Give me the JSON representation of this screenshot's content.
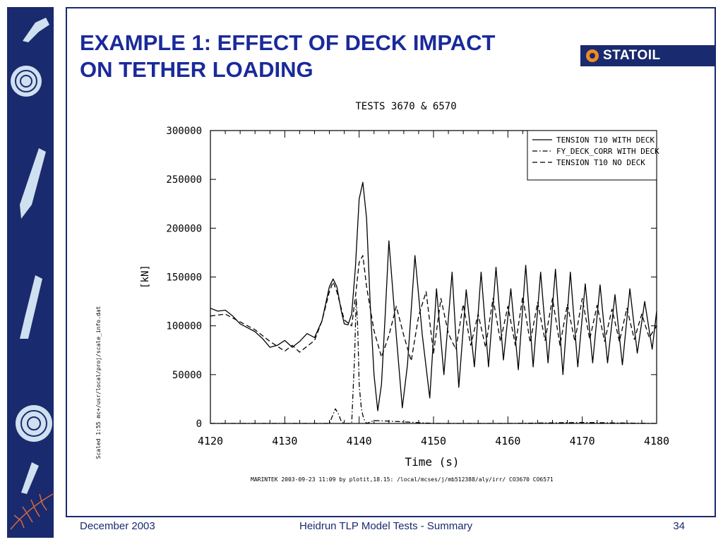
{
  "slide": {
    "title_line1": "EXAMPLE 1: EFFECT OF DECK IMPACT",
    "title_line2": "ON TETHER LOADING",
    "logo_text": "STATOIL",
    "logo_icon": "statoil-flame-icon",
    "footer_left": "December 2003",
    "footer_center": "Heidrun TLP Model Tests - Summary",
    "footer_right": "34",
    "colors": {
      "brand_navy": "#1a2a6e",
      "title_blue": "#1a2a9a",
      "logo_orange": "#f08a24"
    }
  },
  "chart_data": {
    "type": "line",
    "title": "TESTS 3670 & 6570",
    "xlabel": "Time (s)",
    "ylabel": "[kN]",
    "xlim": [
      4120,
      4180
    ],
    "ylim": [
      0,
      300000
    ],
    "x_ticks": [
      4120,
      4130,
      4140,
      4150,
      4160,
      4170,
      4180
    ],
    "y_ticks": [
      0,
      50000,
      100000,
      150000,
      200000,
      250000,
      300000
    ],
    "grid": false,
    "legend_position": "top-right",
    "side_note": "Scaled 1:55 mc+/usr/local/proj/scale_info.dat",
    "footer_note": "MARINTEK 2003-09-23 11:09 by plotit,18.15: /local/mcses/j/mb512388/aly/irr/ CO3670 CO6571",
    "series": [
      {
        "name": "TENSION T10 WITH DECK",
        "style": "solid",
        "x": [
          4120,
          4121,
          4122,
          4123,
          4124,
          4125,
          4126,
          4127,
          4128,
          4129,
          4130,
          4131,
          4132,
          4133,
          4134,
          4135,
          4136,
          4136.5,
          4137,
          4137.6,
          4138,
          4138.5,
          4139,
          4139.5,
          4140,
          4140.5,
          4141,
          4141.5,
          4142,
          4142.5,
          4143,
          4143.5,
          4144,
          4145,
          4145.8,
          4146.5,
          4147.5,
          4148.5,
          4149.5,
          4150.4,
          4151.4,
          4152.5,
          4153.4,
          4154.4,
          4155.5,
          4156.4,
          4157.4,
          4158.4,
          4159.4,
          4160.4,
          4161.4,
          4162.4,
          4163.4,
          4164.4,
          4165.4,
          4166.4,
          4167.4,
          4168.4,
          4169.4,
          4170.4,
          4171.4,
          4172.4,
          4173.4,
          4174.4,
          4175.4,
          4176.4,
          4177.4,
          4178.4,
          4179.4,
          4180
        ],
        "y": [
          118000,
          115000,
          116000,
          110000,
          102000,
          98000,
          94000,
          87000,
          78000,
          80000,
          85000,
          78000,
          84000,
          92000,
          88000,
          105000,
          140000,
          148000,
          140000,
          115000,
          102000,
          101000,
          112000,
          160000,
          230000,
          247000,
          210000,
          120000,
          50000,
          13000,
          40000,
          110000,
          187000,
          90000,
          16000,
          60000,
          172000,
          90000,
          26000,
          138000,
          50000,
          155000,
          37000,
          137000,
          58000,
          155000,
          58000,
          160000,
          65000,
          138000,
          55000,
          162000,
          58000,
          155000,
          62000,
          158000,
          50000,
          155000,
          58000,
          143000,
          62000,
          142000,
          62000,
          132000,
          60000,
          138000,
          72000,
          125000,
          76000,
          115000
        ]
      },
      {
        "name": "FY_DECK_CORR WITH DECK",
        "style": "dashdot",
        "x": [
          4120,
          4136,
          4136.8,
          4137.2,
          4137.6,
          4138,
          4139,
          4139.4,
          4139.6,
          4139.8,
          4140,
          4140.3,
          4140.6,
          4141,
          4142,
          4145,
          4150,
          4160,
          4170,
          4180
        ],
        "y": [
          0,
          0,
          15000,
          10000,
          2000,
          0,
          0,
          70000,
          128000,
          100000,
          40000,
          15000,
          5000,
          0,
          3000,
          2000,
          0,
          0,
          1000,
          0
        ]
      },
      {
        "name": "TENSION T10 NO DECK",
        "style": "dashed",
        "x": [
          4120,
          4122,
          4124,
          4126,
          4128,
          4130,
          4131,
          4132,
          4134,
          4135,
          4136,
          4136.5,
          4137,
          4138,
          4139,
          4139.5,
          4140,
          4140.5,
          4141,
          4142,
          4143,
          4144,
          4145,
          4146,
          4147,
          4148,
          4149,
          4150,
          4151,
          4152,
          4153,
          4154,
          4155,
          4156,
          4157,
          4158,
          4159,
          4160,
          4161,
          4162,
          4163,
          4164,
          4165,
          4166,
          4167,
          4168,
          4169,
          4170,
          4171,
          4172,
          4173,
          4174,
          4175,
          4176,
          4177,
          4178,
          4179,
          4180
        ],
        "y": [
          110000,
          112000,
          104000,
          96000,
          84000,
          74000,
          80000,
          73000,
          85000,
          105000,
          135000,
          145000,
          135000,
          106000,
          100000,
          130000,
          165000,
          172000,
          140000,
          95000,
          68000,
          90000,
          120000,
          90000,
          64000,
          110000,
          135000,
          72000,
          128000,
          92000,
          76000,
          122000,
          80000,
          112000,
          78000,
          128000,
          84000,
          120000,
          80000,
          130000,
          83000,
          124000,
          85000,
          128000,
          80000,
          122000,
          84000,
          128000,
          86000,
          121000,
          84000,
          117000,
          84000,
          118000,
          86000,
          112000,
          88000,
          100000
        ]
      }
    ]
  }
}
